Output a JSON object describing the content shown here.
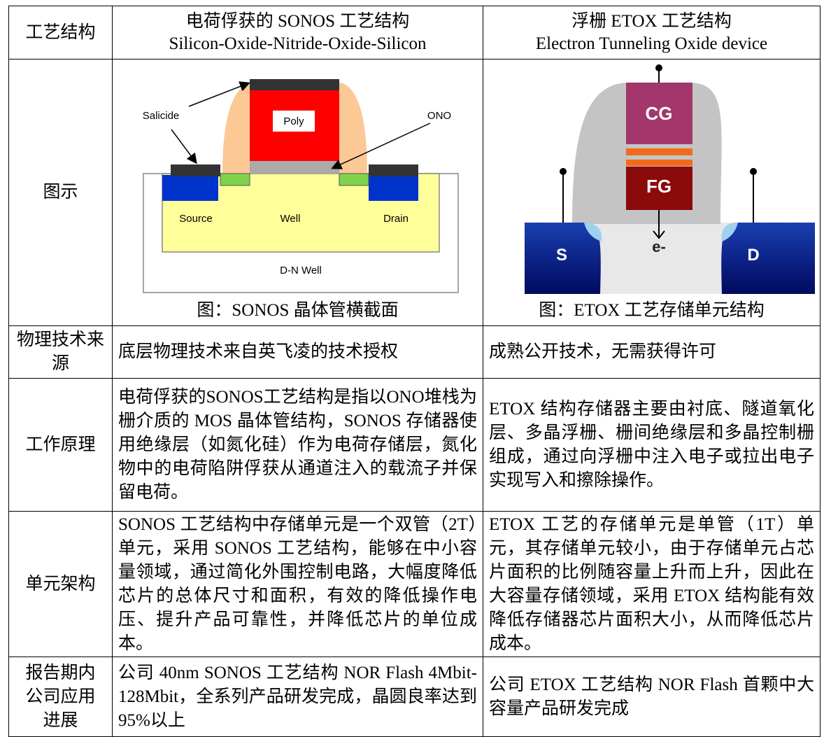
{
  "table": {
    "header": {
      "label": "工艺结构",
      "sonos": {
        "title": "电荷俘获的 SONOS 工艺结构",
        "subtitle": "Silicon-Oxide-Nitride-Oxide-Silicon"
      },
      "etox": {
        "title": "浮栅 ETOX 工艺结构",
        "subtitle": "Electron Tunneling Oxide device"
      }
    },
    "figure_row": {
      "label": "图示",
      "sonos": {
        "labels": {
          "salicide": "Salicide",
          "poly": "Poly",
          "ono": "ONO",
          "source": "Source",
          "well": "Well",
          "drain": "Drain",
          "dn_well": "D-N Well"
        },
        "caption": "图：SONOS 晶体管横截面"
      },
      "etox": {
        "labels": {
          "cg": "CG",
          "fg": "FG",
          "s": "S",
          "d": "D",
          "e": "e-"
        },
        "caption": "图：ETOX 工艺存储单元结构"
      }
    },
    "rows": [
      {
        "label": "物理技术来源",
        "sonos": "底层物理技术来自英飞凌的技术授权",
        "etox": "成熟公开技术，无需获得许可"
      },
      {
        "label": "工作原理",
        "sonos": "电荷俘获的SONOS工艺结构是指以ONO堆栈为栅介质的 MOS 晶体管结构，SONOS 存储器使用绝缘层（如氮化硅）作为电荷存储层，氮化物中的电荷陷阱俘获从通道注入的载流子并保留电荷。",
        "etox": "ETOX 结构存储器主要由衬底、隧道氧化层、多晶浮栅、栅间绝缘层和多晶控制栅组成，通过向浮栅中注入电子或拉出电子实现写入和擦除操作。"
      },
      {
        "label": "单元架构",
        "sonos": "SONOS 工艺结构中存储单元是一个双管（2T）单元，采用 SONOS 工艺结构，能够在中小容量领域，通过简化外围控制电路，大幅度降低芯片的总体尺寸和面积，有效的降低操作电压、提升产品可靠性，并降低芯片的单位成本。",
        "etox": "ETOX 工艺的存储单元是单管（1T）单元，其存储单元较小，由于存储单元占芯片面积的比例随容量上升而上升，因此在大容量存储领域，采用 ETOX 结构能有效降低存储器芯片面积大小，从而降低芯片成本。"
      },
      {
        "label": "报告期内公司应用进展",
        "sonos": "公司 40nm SONOS 工艺结构 NOR Flash 4Mbit-128Mbit，全系列产品研发完成，晶圆良率达到 95%以上",
        "etox": "公司 ETOX 工艺结构 NOR Flash 首颗中大容量产品研发完成"
      }
    ]
  }
}
